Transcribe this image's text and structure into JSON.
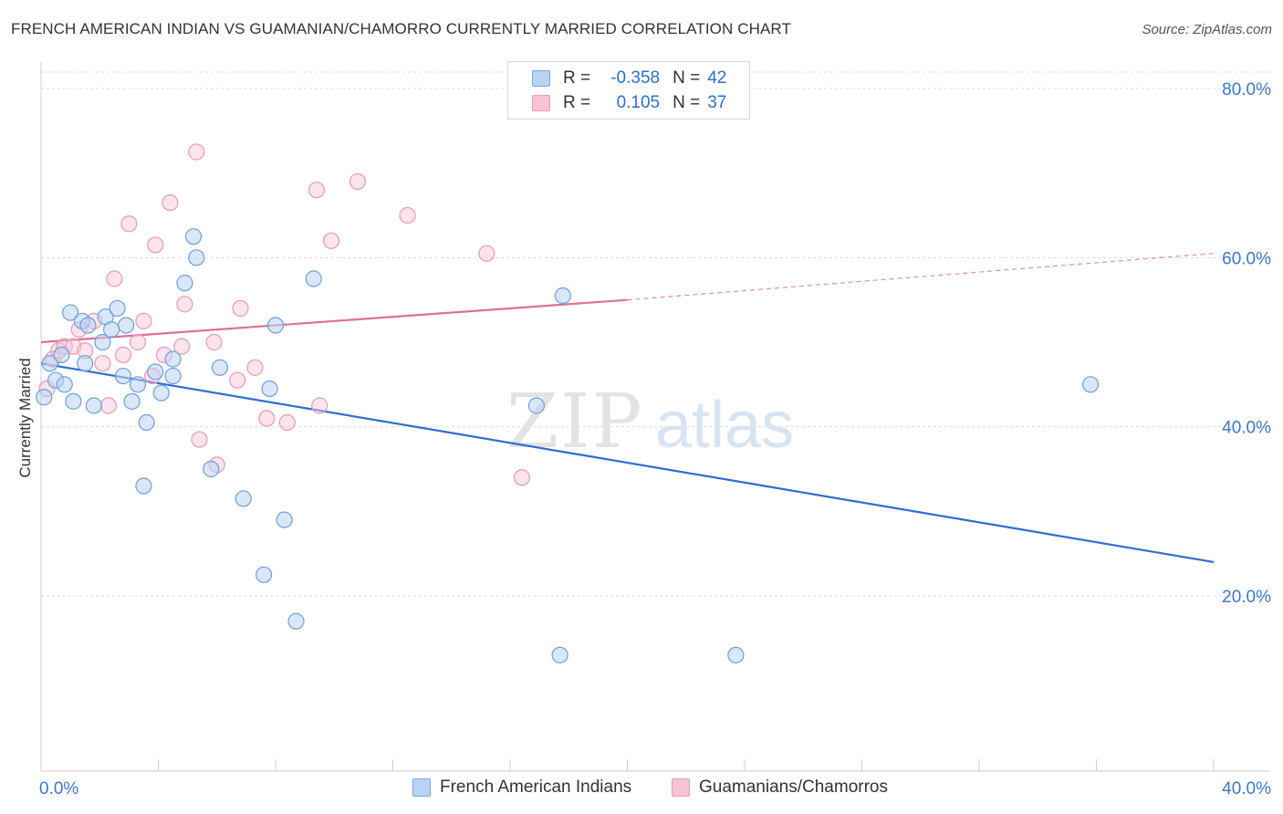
{
  "header": {
    "title": "FRENCH AMERICAN INDIAN VS GUAMANIAN/CHAMORRO CURRENTLY MARRIED CORRELATION CHART",
    "source": "Source: ZipAtlas.com"
  },
  "colors": {
    "blue": "#2f6fcd",
    "blue_fill": "#b9d3f3",
    "pink": "#e07096",
    "pink_fill": "#f6c4d4",
    "grid": "#dcdcdc",
    "axis_text": "#3c78c8"
  },
  "stats_legend": {
    "rows": [
      {
        "r_label": "R =",
        "r_value": "-0.358",
        "n_label": "N =",
        "n_value": "42"
      },
      {
        "r_label": "R =",
        "r_value": "0.105",
        "n_label": "N =",
        "n_value": "37"
      }
    ]
  },
  "watermark": {
    "zip": "ZIP",
    "atlas": "atlas"
  },
  "chart_data": {
    "type": "scatter",
    "title": "FRENCH AMERICAN INDIAN VS GUAMANIAN/CHAMORRO CURRENTLY MARRIED CORRELATION CHART",
    "xlabel": "",
    "ylabel": "Currently Married",
    "xlim": [
      0,
      40
    ],
    "ylim": [
      0,
      85
    ],
    "x_ticks": [
      0,
      4,
      8,
      12,
      16,
      20,
      24,
      28,
      32,
      36,
      40
    ],
    "x_tick_labels": {
      "0": "0.0%",
      "40": "40.0%"
    },
    "y_ticks": [
      20,
      40,
      60,
      80
    ],
    "y_tick_labels": [
      "20.0%",
      "40.0%",
      "60.0%",
      "80.0%"
    ],
    "grid": true,
    "legend_position": "bottom",
    "series": [
      {
        "name": "French American Indians",
        "color": "#2f6fcd",
        "fill": "#b9d3f3",
        "points": [
          [
            0.1,
            43.5
          ],
          [
            0.3,
            47.5
          ],
          [
            0.5,
            45.5
          ],
          [
            0.7,
            48.5
          ],
          [
            0.8,
            45.0
          ],
          [
            1.0,
            53.5
          ],
          [
            1.1,
            43.0
          ],
          [
            1.4,
            52.5
          ],
          [
            1.5,
            47.5
          ],
          [
            1.6,
            52.0
          ],
          [
            1.8,
            42.5
          ],
          [
            2.1,
            50.0
          ],
          [
            2.2,
            53.0
          ],
          [
            2.4,
            51.5
          ],
          [
            2.6,
            54.0
          ],
          [
            2.8,
            46.0
          ],
          [
            2.9,
            52.0
          ],
          [
            3.1,
            43.0
          ],
          [
            3.3,
            45.0
          ],
          [
            3.5,
            33.0
          ],
          [
            3.6,
            40.5
          ],
          [
            3.9,
            46.5
          ],
          [
            4.1,
            44.0
          ],
          [
            4.5,
            46.0
          ],
          [
            4.5,
            48.0
          ],
          [
            4.9,
            57.0
          ],
          [
            5.2,
            62.5
          ],
          [
            5.3,
            60.0
          ],
          [
            5.8,
            35.0
          ],
          [
            6.1,
            47.0
          ],
          [
            6.9,
            31.5
          ],
          [
            7.6,
            22.5
          ],
          [
            7.8,
            44.5
          ],
          [
            8.0,
            52.0
          ],
          [
            8.3,
            29.0
          ],
          [
            8.7,
            17.0
          ],
          [
            9.3,
            57.5
          ],
          [
            16.9,
            42.5
          ],
          [
            17.7,
            13.0
          ],
          [
            17.8,
            55.5
          ],
          [
            23.7,
            13.0
          ],
          [
            35.8,
            45.0
          ]
        ],
        "trend": {
          "x0": 0,
          "y0": 47.5,
          "x1": 40,
          "y1": 24.0
        }
      },
      {
        "name": "Guamanians/Chamorros",
        "color": "#e07096",
        "fill": "#f6c4d4",
        "points": [
          [
            0.2,
            44.5
          ],
          [
            0.4,
            48.0
          ],
          [
            0.6,
            49.0
          ],
          [
            0.8,
            49.5
          ],
          [
            1.1,
            49.5
          ],
          [
            1.3,
            51.5
          ],
          [
            1.5,
            49.0
          ],
          [
            1.8,
            52.5
          ],
          [
            2.1,
            47.5
          ],
          [
            2.3,
            42.5
          ],
          [
            2.5,
            57.5
          ],
          [
            2.8,
            48.5
          ],
          [
            3.0,
            64.0
          ],
          [
            3.3,
            50.0
          ],
          [
            3.5,
            52.5
          ],
          [
            3.8,
            46.0
          ],
          [
            3.9,
            61.5
          ],
          [
            4.2,
            48.5
          ],
          [
            4.4,
            66.5
          ],
          [
            4.8,
            49.5
          ],
          [
            4.9,
            54.5
          ],
          [
            5.3,
            72.5
          ],
          [
            5.4,
            38.5
          ],
          [
            5.9,
            50.0
          ],
          [
            6.0,
            35.5
          ],
          [
            6.7,
            45.5
          ],
          [
            6.8,
            54.0
          ],
          [
            7.3,
            47.0
          ],
          [
            7.7,
            41.0
          ],
          [
            8.4,
            40.5
          ],
          [
            9.4,
            68.0
          ],
          [
            9.5,
            42.5
          ],
          [
            9.9,
            62.0
          ],
          [
            10.8,
            69.0
          ],
          [
            12.5,
            65.0
          ],
          [
            15.2,
            60.5
          ],
          [
            16.4,
            34.0
          ]
        ],
        "trend": {
          "x0": 0,
          "y0": 50.0,
          "x1": 20,
          "y1": 55.0,
          "dashed_to_x": 40,
          "dashed_to_y": 60.5
        }
      }
    ]
  }
}
